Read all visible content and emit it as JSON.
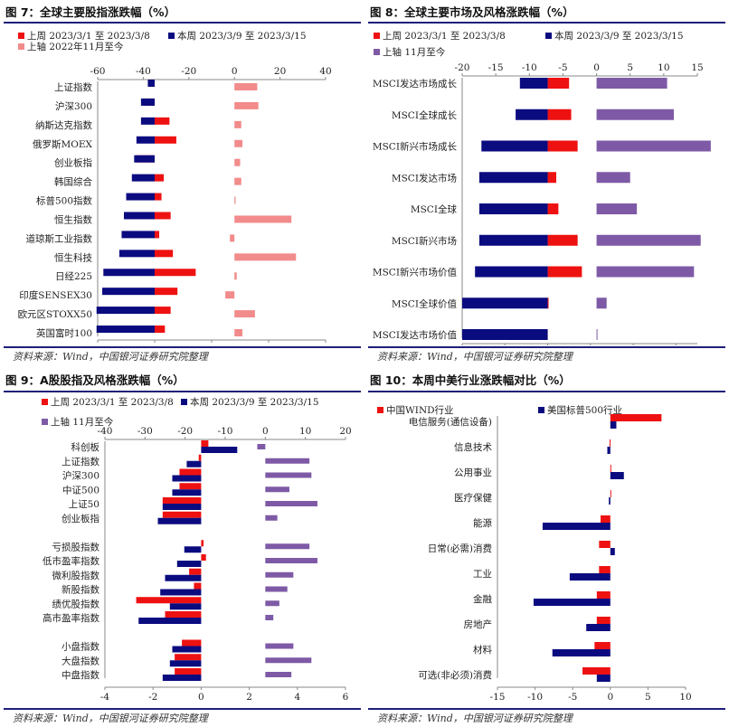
{
  "colors": {
    "last": "#ee1111",
    "this": "#0b0b80",
    "upper": "#7e5aa6",
    "upper_pink": "#f28b8b",
    "rule": "#1f1f7a"
  },
  "source_text": "资料来源：Wind，中国银河证券研究院整理",
  "charts": [
    {
      "title": "图 7：全球主要股指涨跌幅（%）",
      "legend": [
        "上周 2023/3/1 至 2023/3/8",
        "本周 2023/3/9 至 2023/3/15",
        "上轴 2022年11月至今"
      ],
      "chart_data": {
        "type": "bar",
        "orientation": "horizontal",
        "categories": [
          "上证指数",
          "沪深300",
          "纳斯达克指数",
          "俄罗斯MOEX",
          "创业板指",
          "韩国综合",
          "标普500指数",
          "恒生指数",
          "道琼斯工业指数",
          "恒生科技",
          "日经225",
          "印度SENSEX30",
          "欧元区STOXX50",
          "英国富时100"
        ],
        "series": [
          {
            "name": "上周 2023/3/1 至 2023/3/8",
            "axis": "bottom",
            "values": [
              -0.1,
              -0.9,
              1.3,
              1.9,
              -1.6,
              0.8,
              0.6,
              1.4,
              0.4,
              1.6,
              3.6,
              2.0,
              1.4,
              0.9
            ]
          },
          {
            "name": "本周 2023/3/9 至 2023/3/15",
            "axis": "bottom",
            "values": [
              -0.6,
              -1.2,
              -1.2,
              -1.6,
              -1.8,
              -2.0,
              -2.5,
              -2.7,
              -2.9,
              -3.1,
              -4.5,
              -4.6,
              -5.1,
              -5.1
            ]
          },
          {
            "name": "上轴 2022年11月至今",
            "axis": "top",
            "values": [
              10,
              10.5,
              3,
              3.5,
              2.5,
              3,
              0.5,
              25,
              -2,
              27,
              1,
              -4,
              9,
              3.5
            ]
          }
        ],
        "xlim_bottom": [
          -5,
          15
        ],
        "xticks_bottom": [
          -5,
          0,
          5,
          10,
          15
        ],
        "xlim_top": [
          -60,
          40
        ],
        "xticks_top": [
          -60,
          -40,
          -20,
          0,
          20,
          40
        ]
      }
    },
    {
      "title": "图 8：全球主要市场及风格涨跌幅（%）",
      "legend": [
        "上周 2023/3/1 至 2023/3/8",
        "本周 2023/3/9 至 2023/3/15",
        "上轴 11月至今"
      ],
      "chart_data": {
        "type": "bar",
        "orientation": "horizontal",
        "categories": [
          "MSCI发达市场成长",
          "MSCI全球成长",
          "MSCI新兴市场成长",
          "MSCI发达市场",
          "MSCI全球",
          "MSCI新兴市场",
          "MSCI新兴市场价值",
          "MSCI全球价值",
          "MSCI发达市场价值"
        ],
        "series": [
          {
            "name": "上周 2023/3/1 至 2023/3/8",
            "axis": "bottom",
            "values": [
              1.0,
              1.1,
              1.4,
              0.4,
              0.5,
              1.4,
              1.6,
              0.0,
              -0.2
            ]
          },
          {
            "name": "本周 2023/3/9 至 2023/3/15",
            "axis": "bottom",
            "values": [
              -1.3,
              -1.5,
              -3.1,
              -3.2,
              -3.2,
              -3.2,
              -3.4,
              -4.0,
              -4.0
            ]
          },
          {
            "name": "上轴 11月至今",
            "axis": "top",
            "values": [
              10.5,
              11.5,
              17,
              5,
              6,
              15.5,
              14.5,
              1.5,
              0
            ]
          }
        ],
        "xlim_bottom": [
          -4,
          7
        ],
        "xticks_bottom": [
          -4,
          -2,
          0,
          2,
          4,
          6
        ],
        "xlim_top": [
          -20,
          15
        ],
        "xticks_top": [
          -20,
          -15,
          -10,
          -5,
          0,
          5,
          10,
          15
        ]
      }
    },
    {
      "title": "图 9：A股股指及风格涨跌幅（%）",
      "legend": [
        "上周 2023/3/1 至 2023/3/8",
        "本周 2023/3/9 至 2023/3/15",
        "上轴 11月至今"
      ],
      "chart_data": {
        "type": "bar",
        "orientation": "horizontal",
        "categories": [
          "科创板",
          "上证指数",
          "沪深300",
          "中证500",
          "上证50",
          "创业板指",
          "",
          "亏损股指数",
          "低市盈率指数",
          "微利股指数",
          "新股指数",
          "绩优股指数",
          "高市盈率指数",
          "",
          "小盘指数",
          "大盘指数",
          "中盘指数"
        ],
        "series": [
          {
            "name": "上周 2023/3/1 至 2023/3/8",
            "axis": "bottom",
            "values": [
              0.3,
              -0.1,
              -0.9,
              -0.9,
              -1.6,
              -1.6,
              null,
              0.1,
              0.2,
              -0.5,
              -0.3,
              -2.7,
              -1.5,
              null,
              -0.8,
              -1.1,
              -1.1
            ]
          },
          {
            "name": "本周 2023/3/9 至 2023/3/15",
            "axis": "bottom",
            "values": [
              1.5,
              -0.6,
              -1.2,
              -1.2,
              -1.6,
              -1.8,
              null,
              -0.7,
              -1.0,
              -1.5,
              -1.7,
              -1.3,
              -2.6,
              null,
              -1.2,
              -1.3,
              -1.6
            ]
          },
          {
            "name": "上轴 11月至今",
            "axis": "top",
            "values": [
              -2,
              11,
              11.5,
              6,
              13,
              3,
              null,
              11,
              13,
              7,
              5.5,
              3.5,
              2,
              null,
              7,
              11.5,
              6.5
            ]
          }
        ],
        "xlim_bottom": [
          -4,
          6
        ],
        "xticks_bottom": [
          -4,
          -2,
          0,
          2,
          4,
          6
        ],
        "xlim_top": [
          -40,
          20
        ],
        "xticks_top": [
          -40,
          -30,
          -20,
          -10,
          0,
          10,
          20
        ]
      }
    },
    {
      "title": "图 10：本周中美行业涨跌幅对比（%）",
      "legend": [
        "中国WIND行业",
        "美国标普500行业"
      ],
      "chart_data": {
        "type": "bar",
        "orientation": "horizontal",
        "categories": [
          "电信服务(通信设备)",
          "信息技术",
          "公用事业",
          "医疗保健",
          "能源",
          "日常(必需)消费",
          "工业",
          "金融",
          "房地产",
          "材料",
          "可选(非必须)消费"
        ],
        "series": [
          {
            "name": "中国WIND行业",
            "axis": "bottom",
            "values": [
              6.8,
              -0.1,
              0.0,
              0.0,
              -1.3,
              -1.5,
              -1.5,
              -1.8,
              -1.8,
              -2.1,
              -3.7
            ]
          },
          {
            "name": "美国标普500行业",
            "axis": "bottom",
            "values": [
              0.8,
              -0.4,
              1.8,
              -0.2,
              -9.0,
              0.6,
              -5.4,
              -10.2,
              -3.2,
              -7.7,
              -1.8
            ]
          }
        ],
        "xlim_bottom": [
          -15,
          10
        ],
        "xticks_bottom": [
          -15,
          -10,
          -5,
          0,
          5,
          10
        ]
      }
    }
  ]
}
